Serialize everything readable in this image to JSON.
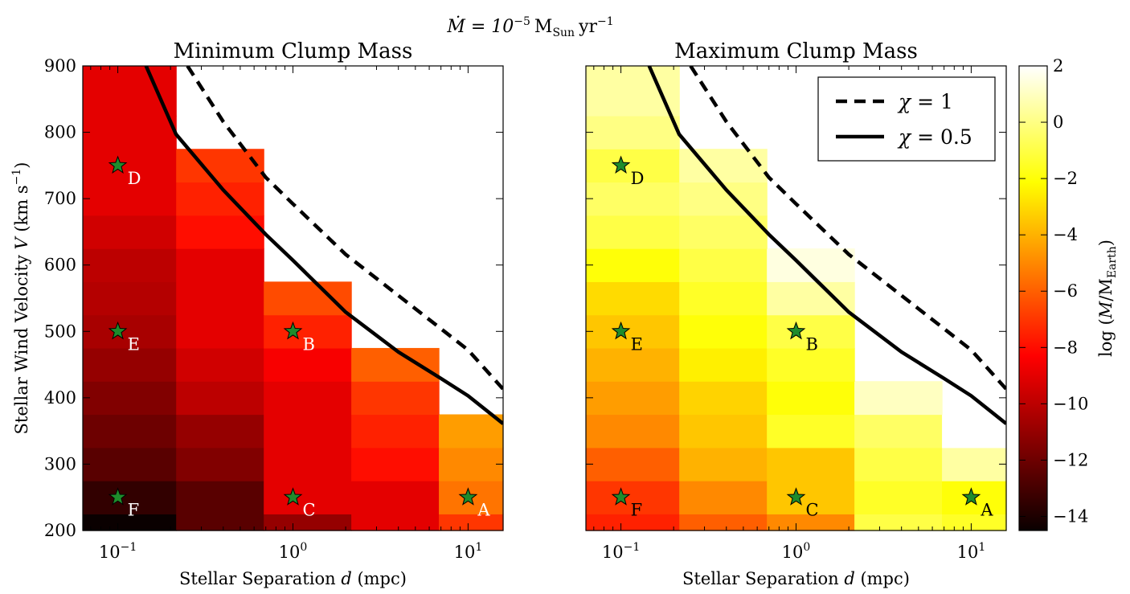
{
  "figure": {
    "suptitle_lhs": "Ṁ = 10",
    "suptitle_exp": "−5",
    "suptitle_unit": "M",
    "suptitle_unit_sub": "Sun",
    "suptitle_yr": "yr",
    "suptitle_yr_exp": "−1"
  },
  "chart_data": [
    {
      "type": "heatmap",
      "title": "Minimum Clump Mass",
      "xlabel": "Stellar Separation d (mpc)",
      "ylabel": "Stellar Wind Velocity V (km s⁻¹)",
      "xscale": "log",
      "xlim": [
        0.0631,
        15.85
      ],
      "ylim": [
        200,
        900
      ],
      "x_ticks": [
        {
          "v": 0.1,
          "base": "10",
          "exp": "−1"
        },
        {
          "v": 1,
          "base": "10",
          "exp": "0"
        },
        {
          "v": 10,
          "base": "10",
          "exp": "1"
        }
      ],
      "y_ticks": [
        200,
        300,
        400,
        500,
        600,
        700,
        800,
        900
      ],
      "x_col_edges": [
        0.0631,
        0.2154,
        0.6813,
        2.154,
        6.813,
        15.85
      ],
      "y_row_edges": [
        200,
        225,
        275,
        325,
        375,
        425,
        475,
        525,
        575,
        625,
        675,
        725,
        775,
        825,
        900
      ],
      "log_mass": [
        [
          -14.5,
          -12.5,
          -11,
          -9,
          -7
        ],
        [
          -13.5,
          -12.5,
          -9,
          -9,
          -5.5
        ],
        [
          -12.5,
          -11.5,
          -9,
          -8,
          -5
        ],
        [
          -12,
          -11,
          -9,
          -7.5,
          -4.5
        ],
        [
          -11.5,
          -10,
          -9,
          -7,
          null
        ],
        [
          -11,
          -9.5,
          -8.5,
          -6,
          null
        ],
        [
          -10.5,
          -9,
          -7.5,
          null,
          null
        ],
        [
          -10.2,
          -9,
          -6.5,
          null,
          null
        ],
        [
          -10,
          -9,
          null,
          null,
          null
        ],
        [
          -9.5,
          -8,
          null,
          null,
          null
        ],
        [
          -9,
          -7.5,
          null,
          null,
          null
        ],
        [
          -9,
          -7,
          null,
          null,
          null
        ],
        [
          -9,
          null,
          null,
          null,
          null
        ],
        [
          -9,
          null,
          null,
          null,
          null
        ]
      ],
      "points": [
        {
          "label": "D",
          "x": 0.1,
          "y": 750
        },
        {
          "label": "E",
          "x": 0.1,
          "y": 500
        },
        {
          "label": "F",
          "x": 0.1,
          "y": 250
        },
        {
          "label": "B",
          "x": 1,
          "y": 500
        },
        {
          "label": "C",
          "x": 1,
          "y": 250
        },
        {
          "label": "A",
          "x": 10,
          "y": 250
        }
      ],
      "curves": [
        {
          "name": "χ = 1",
          "style": "dashed",
          "x": [
            0.25,
            0.4,
            0.7,
            1,
            2,
            4,
            7,
            10,
            15.85
          ],
          "y": [
            900,
            816,
            732,
            692,
            616,
            554,
            504,
            472,
            413
          ]
        },
        {
          "name": "χ = 0.5",
          "style": "solid",
          "x": [
            0.145,
            0.215,
            0.4,
            0.7,
            1,
            2,
            4,
            7,
            10,
            15.85
          ],
          "y": [
            900,
            797,
            713,
            646,
            607,
            529,
            469,
            429,
            403,
            361
          ]
        }
      ]
    },
    {
      "type": "heatmap",
      "title": "Maximum Clump Mass",
      "xlabel": "Stellar Separation d (mpc)",
      "xscale": "log",
      "xlim": [
        0.0631,
        15.85
      ],
      "ylim": [
        200,
        900
      ],
      "x_ticks": [
        {
          "v": 0.1,
          "base": "10",
          "exp": "−1"
        },
        {
          "v": 1,
          "base": "10",
          "exp": "0"
        },
        {
          "v": 10,
          "base": "10",
          "exp": "1"
        }
      ],
      "y_ticks": [
        200,
        300,
        400,
        500,
        600,
        700,
        800,
        900
      ],
      "x_col_edges": [
        0.0631,
        0.2154,
        0.6813,
        2.154,
        6.813,
        15.85
      ],
      "y_row_edges": [
        200,
        225,
        275,
        325,
        375,
        425,
        475,
        525,
        575,
        625,
        675,
        725,
        775,
        825,
        900
      ],
      "log_mass": [
        [
          -7.5,
          -6,
          -5,
          -1,
          -1.5
        ],
        [
          -7,
          -5,
          -3.5,
          -1.5,
          -2
        ],
        [
          -6,
          -4,
          -3.5,
          -1,
          0.5
        ],
        [
          -5,
          -3.5,
          -1.5,
          -0.5,
          2
        ],
        [
          -4.5,
          -3.2,
          -2,
          1,
          null
        ],
        [
          -4,
          -2.5,
          -1.5,
          null,
          null
        ],
        [
          -3.5,
          -2,
          -1,
          null,
          null
        ],
        [
          -3,
          -1.5,
          0.5,
          null,
          null
        ],
        [
          -2,
          -1,
          1.5,
          null,
          null
        ],
        [
          -1,
          -0.5,
          null,
          null,
          null
        ],
        [
          -0.5,
          0,
          null,
          null,
          null
        ],
        [
          -1,
          0.5,
          null,
          null,
          null
        ],
        [
          0,
          null,
          null,
          null,
          null
        ],
        [
          0.5,
          null,
          null,
          null,
          null
        ]
      ],
      "points": [
        {
          "label": "D",
          "x": 0.1,
          "y": 750
        },
        {
          "label": "E",
          "x": 0.1,
          "y": 500
        },
        {
          "label": "F",
          "x": 0.1,
          "y": 250
        },
        {
          "label": "B",
          "x": 1,
          "y": 500
        },
        {
          "label": "C",
          "x": 1,
          "y": 250
        },
        {
          "label": "A",
          "x": 10,
          "y": 250
        }
      ],
      "curves": [
        {
          "name": "χ = 1",
          "style": "dashed",
          "x": [
            0.25,
            0.4,
            0.7,
            1,
            2,
            4,
            7,
            10,
            15.85
          ],
          "y": [
            900,
            816,
            732,
            692,
            616,
            554,
            504,
            472,
            413
          ]
        },
        {
          "name": "χ = 0.5",
          "style": "solid",
          "x": [
            0.145,
            0.215,
            0.4,
            0.7,
            1,
            2,
            4,
            7,
            10,
            15.85
          ],
          "y": [
            900,
            797,
            713,
            646,
            607,
            529,
            469,
            429,
            403,
            361
          ]
        }
      ],
      "legend": {
        "placement": "top-right",
        "entries": [
          {
            "lhs": "χ",
            "rhs": "= 1",
            "style": "dashed"
          },
          {
            "lhs": "χ",
            "rhs": "= 0.5",
            "style": "solid"
          }
        ]
      }
    }
  ],
  "colorbar": {
    "label_pre": "log (",
    "label_m": "M",
    "label_mid": "/M",
    "label_sub": "Earth",
    "label_post": ")",
    "colormap": "hot",
    "range": [
      -14.5,
      2
    ],
    "ticks": [
      {
        "v": 2,
        "t": "2"
      },
      {
        "v": 0,
        "t": "0"
      },
      {
        "v": -2,
        "t": "−2"
      },
      {
        "v": -4,
        "t": "−4"
      },
      {
        "v": -6,
        "t": "−6"
      },
      {
        "v": -8,
        "t": "−8"
      },
      {
        "v": -10,
        "t": "−10"
      },
      {
        "v": -12,
        "t": "−12"
      },
      {
        "v": -14,
        "t": "−14"
      }
    ]
  },
  "colors": {
    "star_fill": "#1e8c2c",
    "star_stroke": "#000000",
    "axis": "#000000",
    "legend_bg": "#ffffff"
  }
}
